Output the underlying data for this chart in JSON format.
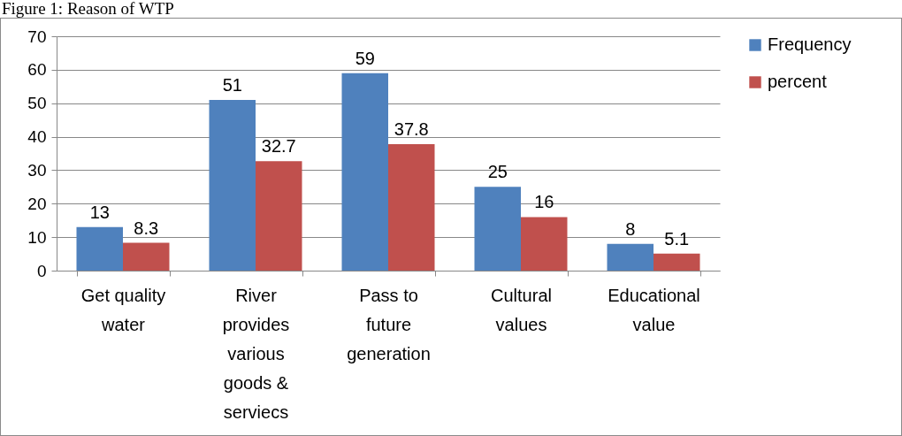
{
  "chart_data": {
    "type": "bar",
    "title": "Figure 1: Reason of WTP",
    "categories": [
      "Get quality water",
      "River provides various goods & serviecs",
      "Pass to future generation",
      "Cultural values",
      "Educational value"
    ],
    "series": [
      {
        "name": "Frequency",
        "color": "#4f81bd",
        "values": [
          13,
          51,
          59,
          25,
          8
        ]
      },
      {
        "name": "percent",
        "color": "#c0504d",
        "values": [
          8.3,
          32.7,
          37.8,
          16,
          5.1
        ]
      }
    ],
    "ylim": [
      0,
      70
    ],
    "yticks": [
      0,
      10,
      20,
      30,
      40,
      50,
      60,
      70
    ],
    "grid": "y",
    "legend": "right",
    "data_labels": true
  }
}
